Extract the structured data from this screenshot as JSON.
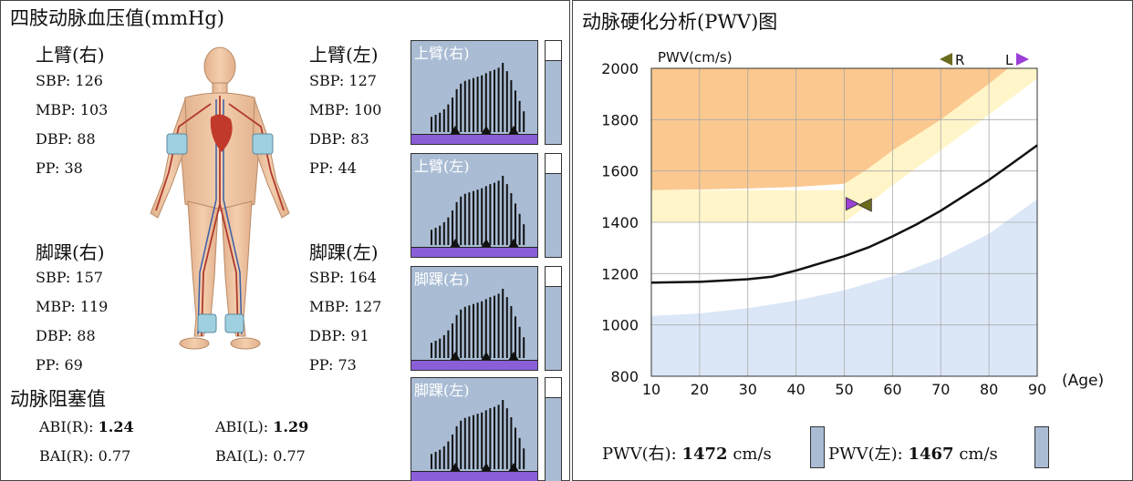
{
  "left": {
    "title": "四肢动脉血压值(mmHg)",
    "limbs": [
      {
        "id": "ua-right",
        "title": "上臂(右)",
        "sbp": "SBP: 126",
        "mbp": "MBP: 103",
        "dbp": "DBP: 88",
        "pp": "PP: 38"
      },
      {
        "id": "ua-left",
        "title": "上臂(左)",
        "sbp": "SBP: 127",
        "mbp": "MBP: 100",
        "dbp": "DBP: 83",
        "pp": "PP: 44"
      },
      {
        "id": "ankle-right",
        "title": "脚踝(右)",
        "sbp": "SBP: 157",
        "mbp": "MBP: 119",
        "dbp": "DBP: 88",
        "pp": "PP: 69"
      },
      {
        "id": "ankle-left",
        "title": "脚踝(左)",
        "sbp": "SBP: 164",
        "mbp": "MBP: 127",
        "dbp": "DBP: 91",
        "pp": "PP: 73"
      }
    ],
    "abi_title": "动脉阻塞值",
    "abi_r_label": "ABI(R):",
    "abi_r_value": "1.24",
    "abi_l_label": "ABI(L):",
    "abi_l_value": "1.29",
    "bai_r_label": "BAI(R):",
    "bai_r_value": "0.77",
    "bai_l_label": "BAI(L):",
    "bai_l_value": "0.77",
    "waves": [
      "上臂(右)",
      "上臂(左)",
      "脚踝(右)",
      "脚踝(左)"
    ]
  },
  "right": {
    "title": "动脉硬化分析(PWV)图",
    "pwv_right_label": "PWV(右):",
    "pwv_right_value": "1472",
    "pwv_left_label": "PWV(左):",
    "pwv_left_value": "1467",
    "unit": "cm/s"
  },
  "chart_data": {
    "type": "line",
    "ylabel": "PWV(cm/s)",
    "xlabel": "(Age)",
    "xlim": [
      10,
      90
    ],
    "ylim": [
      800,
      2000
    ],
    "x_ticks": [
      10,
      20,
      30,
      40,
      50,
      60,
      70,
      80,
      90
    ],
    "y_ticks": [
      800,
      1000,
      1200,
      1400,
      1600,
      1800,
      2000
    ],
    "grid": true,
    "legend": {
      "right_marker": "R",
      "left_marker": "L",
      "right_color": "#6b6b1e",
      "left_color": "#9b3fd6"
    },
    "series": [
      {
        "x": [
          10,
          20,
          30,
          35,
          40,
          45,
          50,
          55,
          60,
          65,
          70,
          75,
          80,
          85,
          90
        ],
        "y": [
          1165,
          1168,
          1178,
          1188,
          1212,
          1240,
          1268,
          1302,
          1345,
          1392,
          1445,
          1505,
          1565,
          1632,
          1700
        ]
      }
    ],
    "bands": {
      "orange": {
        "color": "#fbc88f",
        "x": [
          10,
          20,
          30,
          40,
          50,
          55,
          60,
          70,
          80,
          84
        ],
        "y": [
          1525,
          1528,
          1532,
          1538,
          1550,
          1610,
          1680,
          1800,
          1940,
          2000
        ]
      },
      "yellow": {
        "color": "#fff5c8",
        "x": [
          50,
          55,
          60,
          70,
          80,
          90
        ],
        "y": [
          1400,
          1470,
          1545,
          1680,
          1820,
          1960
        ]
      },
      "blue": {
        "color": "#dbe7f7",
        "x": [
          10,
          20,
          30,
          40,
          50,
          60,
          70,
          80,
          90
        ],
        "y": [
          1035,
          1045,
          1065,
          1095,
          1135,
          1190,
          1260,
          1355,
          1490
        ]
      }
    },
    "patient_points": {
      "right": {
        "x": 53,
        "y": 1472
      },
      "left": {
        "x": 53,
        "y": 1467
      }
    }
  }
}
